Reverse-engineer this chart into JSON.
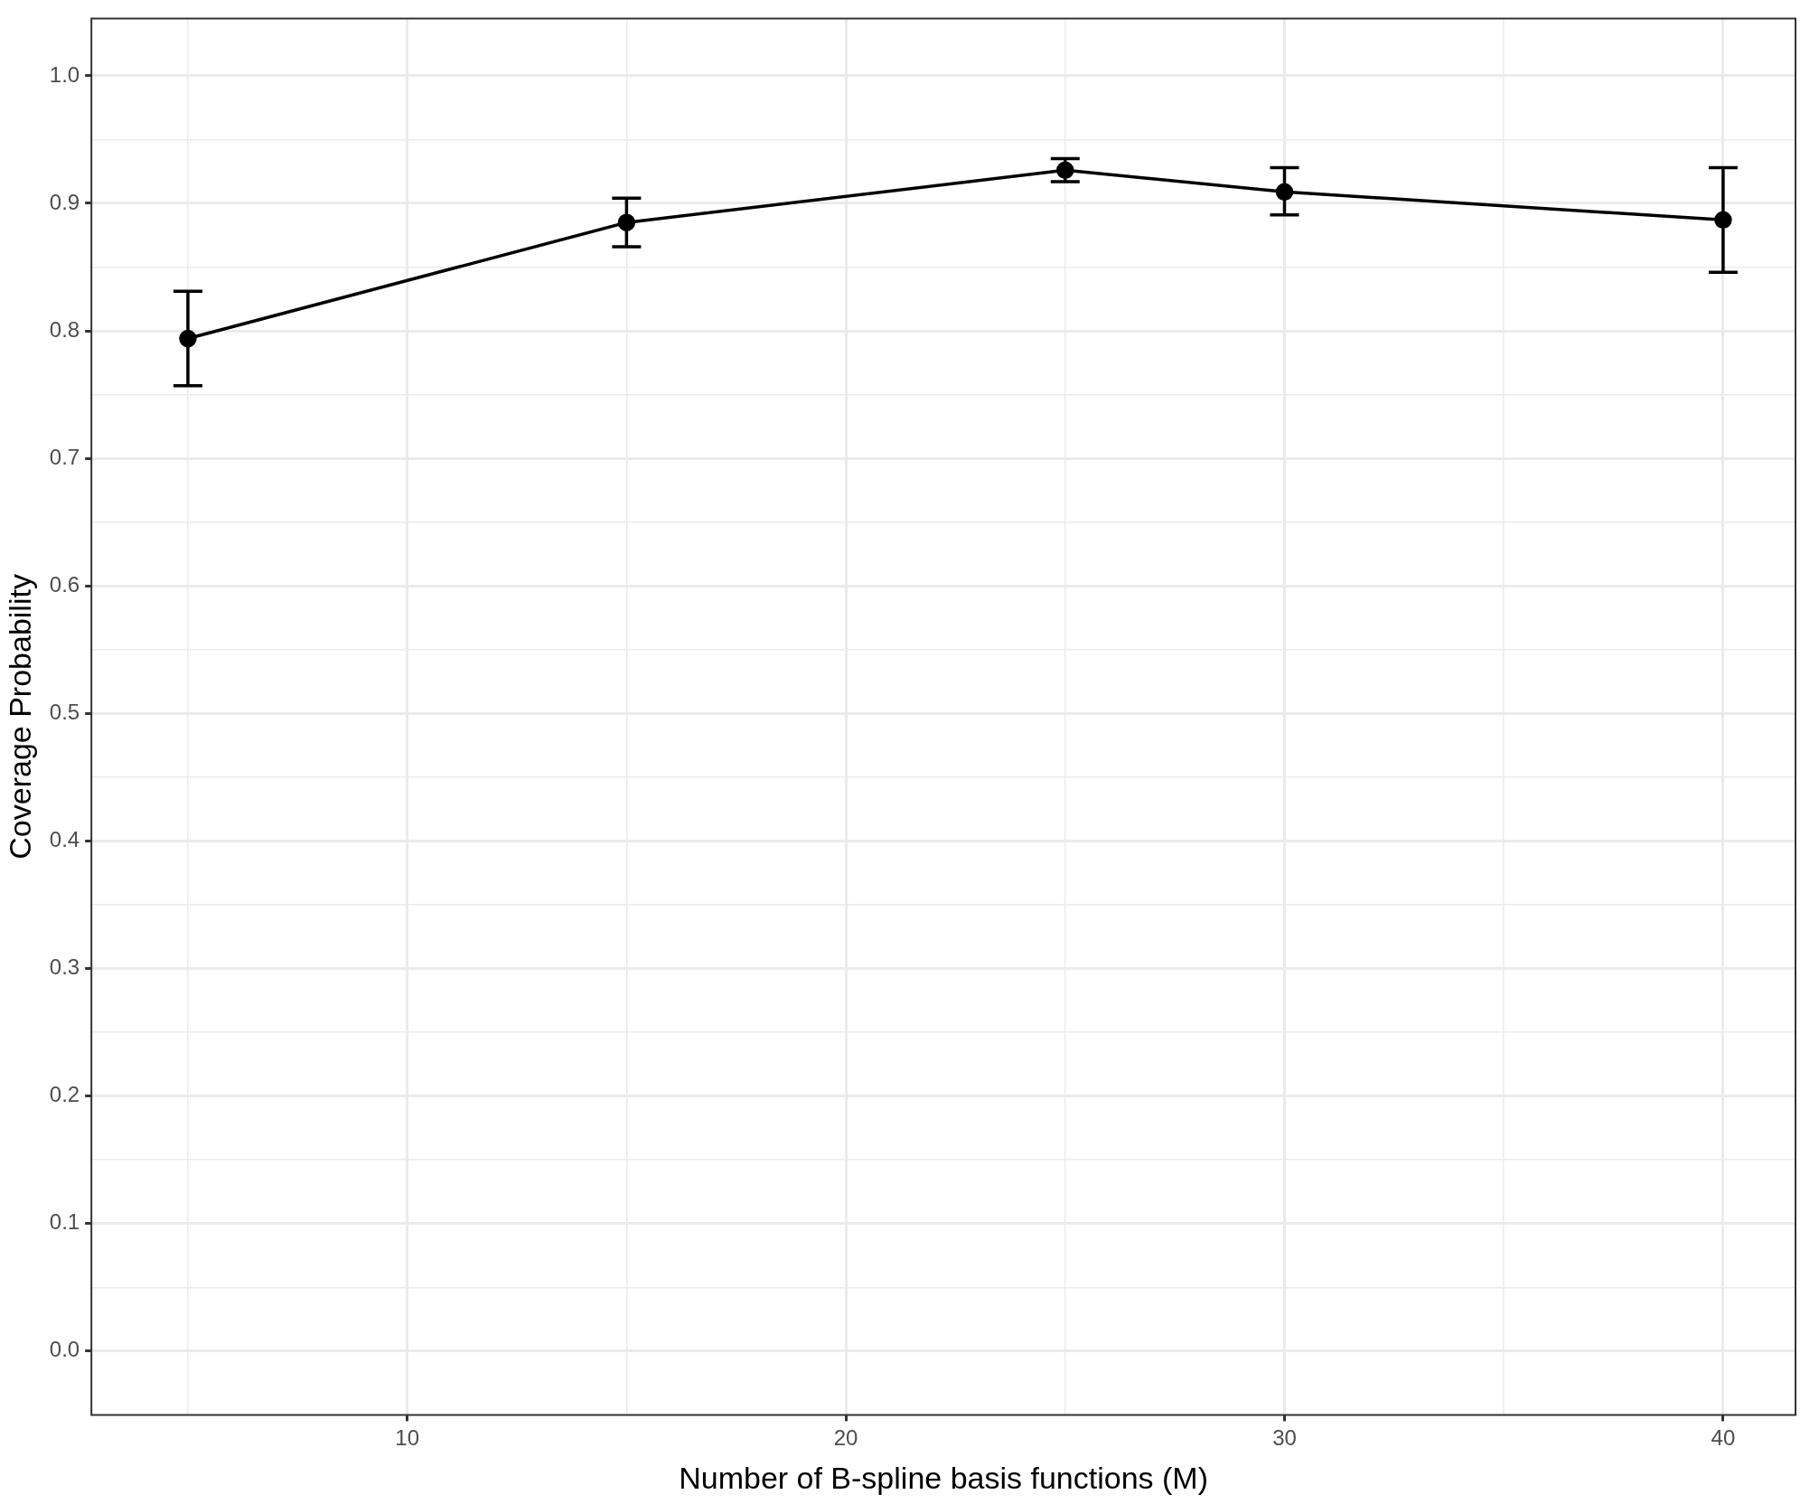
{
  "chart_data": {
    "type": "line",
    "xlabel": "Number of B-spline basis functions (M)",
    "ylabel": "Coverage Probability",
    "x": [
      5,
      15,
      25,
      30,
      40
    ],
    "series": [
      {
        "color": "#000000",
        "values": [
          0.794,
          0.885,
          0.926,
          0.909,
          0.887
        ],
        "errors": [
          [
            0.757,
            0.831
          ],
          [
            0.866,
            0.904
          ],
          [
            0.917,
            0.935
          ],
          [
            0.891,
            0.928
          ],
          [
            0.846,
            0.928
          ]
        ]
      }
    ],
    "xlim": [
      2.8,
      41.65
    ],
    "xticks": [
      {
        "value": 5,
        "label": null
      },
      10,
      {
        "value": 15,
        "label": null
      },
      20,
      {
        "value": 25,
        "label": null
      },
      30,
      {
        "value": 35,
        "label": null
      },
      40
    ],
    "ylim": [
      -0.05,
      1.045
    ],
    "yticks": [
      {
        "value": 0,
        "label": "0.0"
      },
      {
        "value": 0.05,
        "label": null
      },
      0.1,
      {
        "value": 0.15,
        "label": null
      },
      0.2,
      {
        "value": 0.25,
        "label": null
      },
      0.3,
      {
        "value": 0.35,
        "label": null
      },
      0.4,
      {
        "value": 0.45,
        "label": null
      },
      0.5,
      {
        "value": 0.55,
        "label": null
      },
      0.6,
      {
        "value": 0.65,
        "label": null
      },
      0.7,
      {
        "value": 0.75,
        "label": null
      },
      0.8,
      {
        "value": 0.85,
        "label": null
      },
      0.9,
      {
        "value": 0.95,
        "label": null
      },
      {
        "value": 1,
        "label": "1.0"
      }
    ],
    "grid": true,
    "marker": "circle",
    "line_style": "solid",
    "legend": false
  }
}
